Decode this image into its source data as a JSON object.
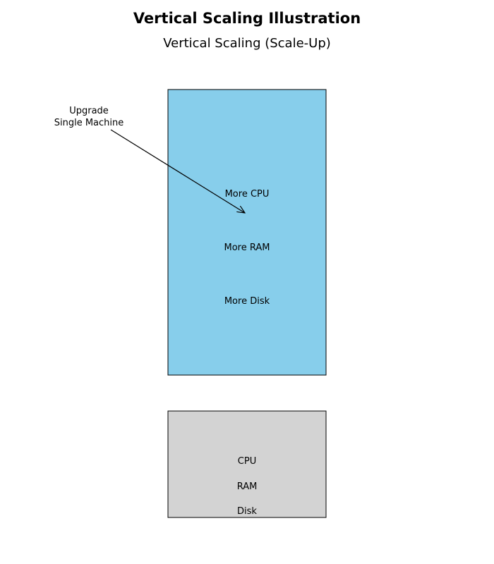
{
  "title": "Vertical Scaling Illustration",
  "subtitle": "Vertical Scaling (Scale-Up)",
  "upgraded_machine": {
    "fill": "#87CEEB",
    "labels": [
      "More CPU",
      "More RAM",
      "More Disk"
    ]
  },
  "original_machine": {
    "fill": "#D3D3D3",
    "labels": [
      "CPU",
      "RAM",
      "Disk"
    ]
  },
  "annotation": {
    "line1": "Upgrade",
    "line2": "Single Machine"
  }
}
